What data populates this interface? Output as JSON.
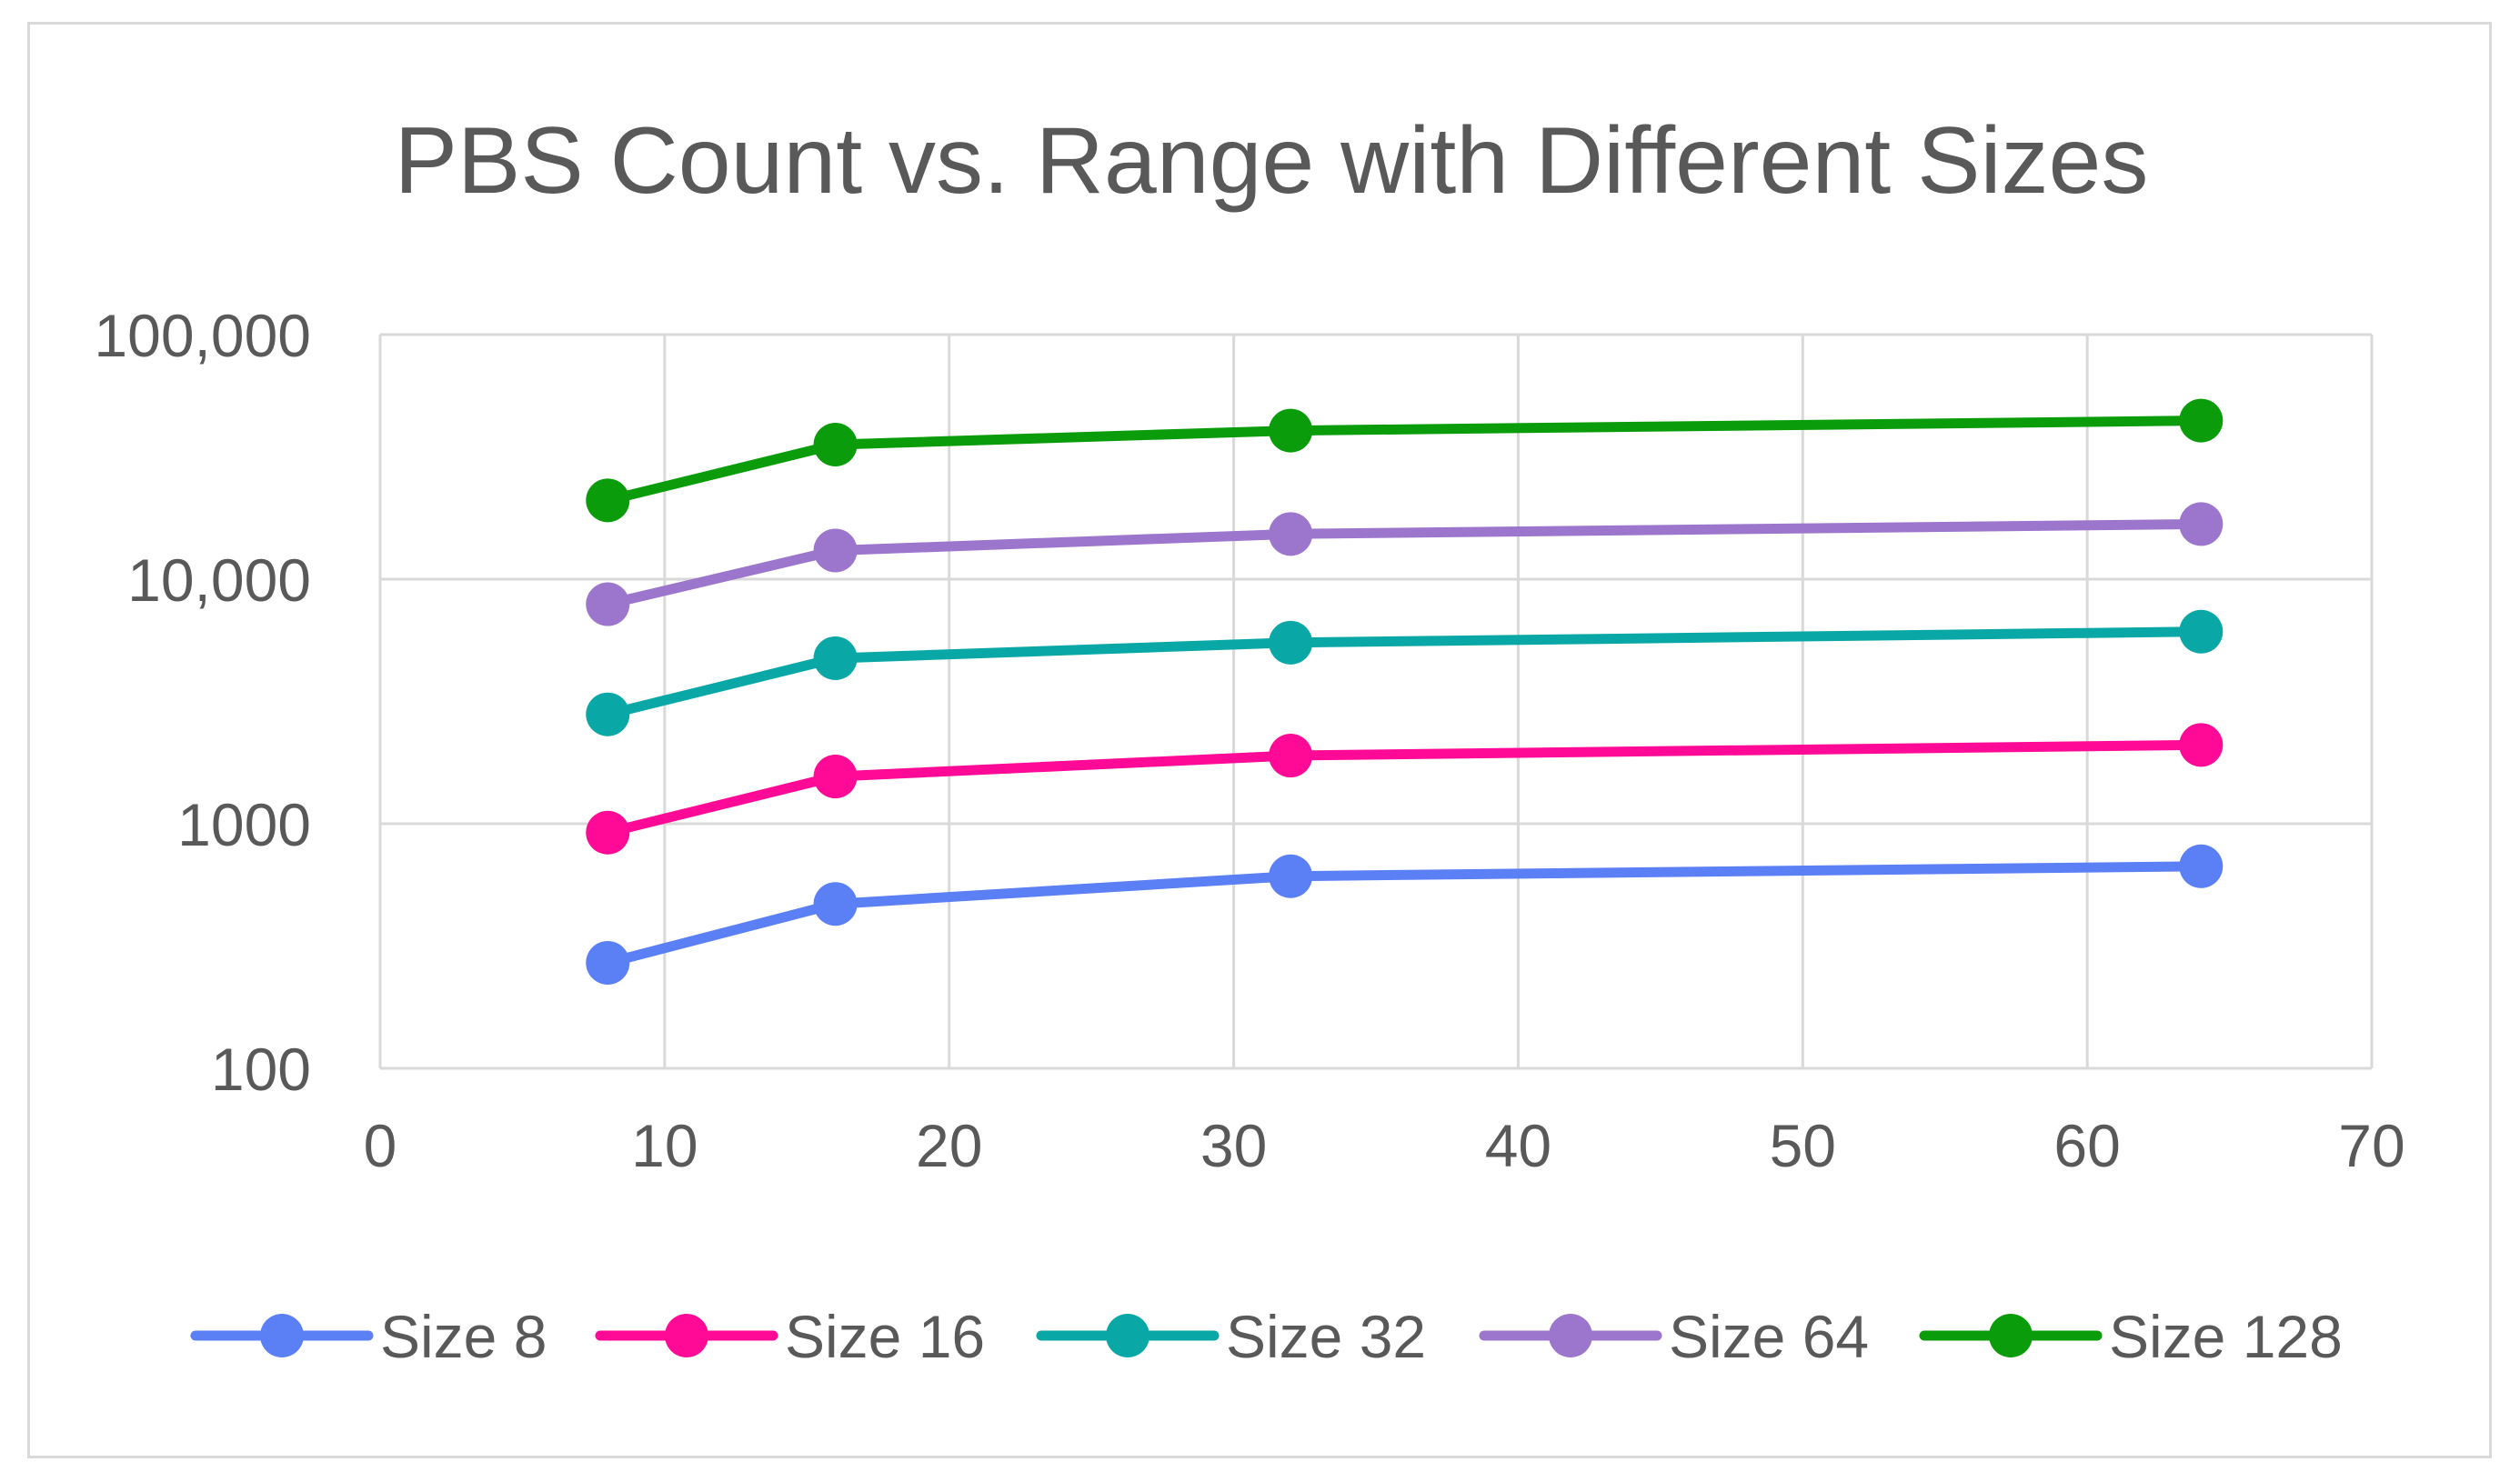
{
  "chart_data": {
    "type": "line",
    "title": "PBS Count vs. Range with Different Sizes",
    "xlabel": "",
    "ylabel": "",
    "x_scale": "linear",
    "y_scale": "log",
    "xlim": [
      0,
      70
    ],
    "ylim": [
      100,
      100000
    ],
    "x_ticks": [
      0,
      10,
      20,
      30,
      40,
      50,
      60,
      70
    ],
    "x_tick_labels": [
      "0",
      "10",
      "20",
      "30",
      "40",
      "50",
      "60",
      "70"
    ],
    "y_ticks": [
      100,
      1000,
      10000,
      100000
    ],
    "y_tick_labels": [
      "100",
      "1000",
      "10,000",
      "100,000"
    ],
    "grid": true,
    "legend_position": "bottom",
    "x": [
      8,
      16,
      32,
      64
    ],
    "series": [
      {
        "name": "Size 8",
        "color": "#5b7ff5",
        "values": [
          270,
          470,
          610,
          670
        ]
      },
      {
        "name": "Size 16",
        "color": "#ff0a97",
        "values": [
          920,
          1560,
          1900,
          2100
        ]
      },
      {
        "name": "Size 32",
        "color": "#0aa7a7",
        "values": [
          2800,
          4750,
          5500,
          6100
        ]
      },
      {
        "name": "Size 64",
        "color": "#9c75cc",
        "values": [
          7900,
          13100,
          15300,
          16800
        ]
      },
      {
        "name": "Size 128",
        "color": "#0a9c0a",
        "values": [
          21000,
          35500,
          40500,
          44500
        ]
      }
    ]
  },
  "colors": {
    "axis": "#d9d9d9",
    "text": "#595959"
  }
}
